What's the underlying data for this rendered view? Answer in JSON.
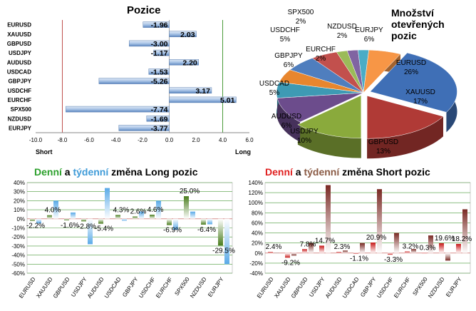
{
  "chart_data": [
    {
      "type": "bar",
      "orientation": "horizontal",
      "title": "Pozice",
      "categories": [
        "EURUSD",
        "XAUUSD",
        "GBPUSD",
        "USDJPY",
        "AUDUSD",
        "USDCAD",
        "GBPJPY",
        "USDCHF",
        "EURCHF",
        "SPX500",
        "NZDUSD",
        "EURJPY"
      ],
      "values": [
        -1.96,
        2.03,
        -3.0,
        -1.17,
        2.2,
        -1.53,
        -5.26,
        3.17,
        5.01,
        -7.74,
        -1.69,
        -3.77
      ],
      "value_labels": [
        "-1.96",
        "2.03",
        "-3.00",
        "-1.17",
        "2.20",
        "-1.53",
        "-5.26",
        "3.17",
        "5.01",
        "-7.74",
        "-1.69",
        "-3.77"
      ],
      "xlim": [
        -10,
        6
      ],
      "ticks": [
        "-10.0",
        "-8.0",
        "-6.0",
        "-4.0",
        "-2.0",
        "0.0",
        "2.0",
        "4.0",
        "6.0"
      ],
      "left_label": "Short",
      "right_label": "Long"
    },
    {
      "type": "pie",
      "title_lines": [
        "Množství",
        "otevřených",
        "pozic"
      ],
      "labels": [
        "EURUSD",
        "XAUUSD",
        "GBPUSD",
        "USDJPY",
        "AUDUSD",
        "USDCAD",
        "GBPJPY",
        "USDCHF",
        "EURCHF",
        "SPX500",
        "NZDUSD",
        "EURJPY"
      ],
      "values": [
        26,
        17,
        13,
        10,
        6,
        5,
        6,
        5,
        2,
        2,
        2,
        6
      ],
      "value_labels": [
        "26%",
        "17%",
        "13%",
        "10%",
        "6%",
        "5%",
        "6%",
        "5%",
        "2%",
        "2%",
        "2%",
        "6%"
      ],
      "colors": [
        "#3f6fb6",
        "#b03a36",
        "#8aaa3c",
        "#6c4c8c",
        "#3e9ab4",
        "#e8862e",
        "#4f7ebe",
        "#c2504d",
        "#9bbb59",
        "#8064a2",
        "#4bacc6",
        "#f79646"
      ]
    },
    {
      "type": "bar",
      "title_parts": [
        "Denní",
        " a ",
        "týdenní",
        " změna Long pozic"
      ],
      "title_colors": [
        "#2ca02c",
        "#000000",
        "#3f9bd8",
        "#000000"
      ],
      "categories": [
        "EURUSD",
        "XAUUSD",
        "GBPUSD",
        "USDJPY",
        "AUDUSD",
        "USDCAD",
        "GBPJPY",
        "USDCHF",
        "EURCHF",
        "SPX500",
        "NZDUSD",
        "EURJPY"
      ],
      "series": [
        {
          "values": [
            -2.2,
            4.0,
            -1.6,
            -2.8,
            -5.4,
            4.3,
            2.6,
            4.6,
            -6.9,
            25.0,
            -6.4,
            -29.5
          ]
        },
        {
          "values": [
            -5.0,
            20.0,
            7.0,
            -28.0,
            34.0,
            -2.0,
            8.0,
            20.0,
            -12.0,
            8.0,
            -6.0,
            -50.0
          ]
        }
      ],
      "value_labels": [
        "-2.2%",
        "4.0%",
        "-1.6%",
        "-2.8%",
        "-5.4%",
        "4.3%",
        "2.6%",
        "4.6%",
        "-6.9%",
        "25.0%",
        "-6.4%",
        "-29.5%"
      ],
      "ylim": [
        -60,
        40
      ],
      "ticks": [
        "40%",
        "30%",
        "20%",
        "10%",
        "0%",
        "-10%",
        "-20%",
        "-30%",
        "-40%",
        "-50%",
        "-60%"
      ],
      "colors": [
        "#4a7d1e",
        "#5aaae8"
      ]
    },
    {
      "type": "bar",
      "title_parts": [
        "Denní",
        " a ",
        "týdenní",
        " změna Short pozic"
      ],
      "title_colors": [
        "#e02020",
        "#000000",
        "#8a5a44",
        "#000000"
      ],
      "categories": [
        "EURUSD",
        "XAUUSD",
        "GBPUSD",
        "USDJPY",
        "AUDUSD",
        "USDCAD",
        "GBPJPY",
        "USDCHF",
        "EURCHF",
        "SPX500",
        "NZDUSD",
        "EURJPY"
      ],
      "series": [
        {
          "values": [
            2.4,
            -9.2,
            7.8,
            14.7,
            2.3,
            -1.1,
            20.9,
            -3.3,
            3.2,
            0.3,
            19.6,
            18.2
          ]
        },
        {
          "values": [
            0.5,
            -5.0,
            20.0,
            135.0,
            5.0,
            20.0,
            127.0,
            40.0,
            8.0,
            35.0,
            -15.0,
            87.0
          ]
        }
      ],
      "value_labels": [
        "2.4%",
        "-9.2%",
        "7.8%",
        "14.7%",
        "2.3%",
        "-1.1%",
        "20.9%",
        "-3.3%",
        "3.2%",
        "0.3%",
        "19.6%",
        "18.2%"
      ],
      "ylim": [
        -40,
        140
      ],
      "ticks": [
        "140%",
        "120%",
        "100%",
        "80%",
        "60%",
        "40%",
        "20%",
        "0%",
        "-20%",
        "-40%"
      ],
      "colors": [
        "#c81818",
        "#7a2a24"
      ]
    }
  ]
}
